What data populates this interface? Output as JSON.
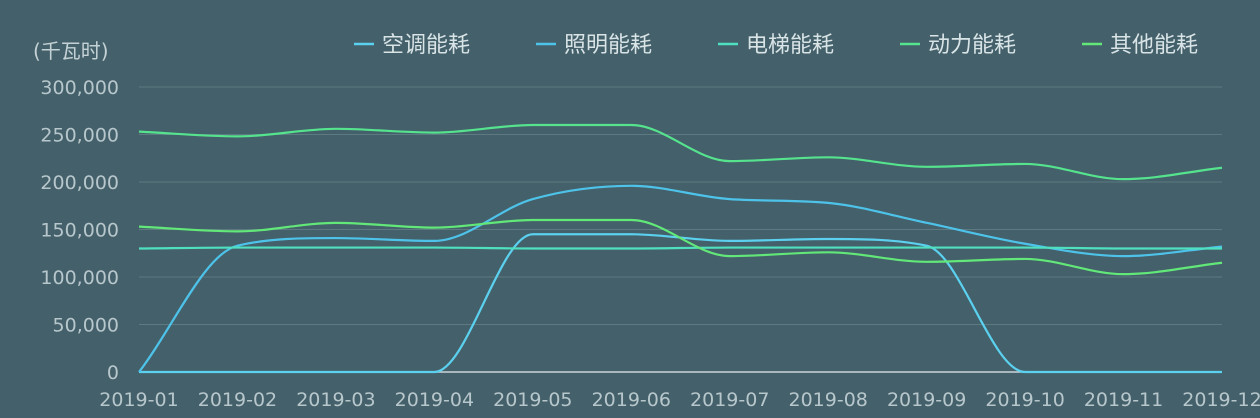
{
  "chart_data": {
    "type": "line",
    "ylabel": "(千瓦时)",
    "ylim": [
      0,
      300000
    ],
    "y_ticks": [
      "0",
      "50,000",
      "100,000",
      "150,000",
      "200,000",
      "250,000",
      "300,000"
    ],
    "y_tick_values": [
      0,
      50000,
      100000,
      150000,
      200000,
      250000,
      300000
    ],
    "categories": [
      "2019-01",
      "2019-02",
      "2019-03",
      "2019-04",
      "2019-05",
      "2019-06",
      "2019-07",
      "2019-08",
      "2019-09",
      "2019-10",
      "2019-11",
      "2019-12"
    ],
    "grid": true,
    "legend_position": "top-right",
    "series": [
      {
        "name": "空调能耗",
        "color": "#5bd1ef",
        "values": [
          0,
          0,
          0,
          0,
          145000,
          145000,
          138000,
          140000,
          133000,
          0,
          0,
          0
        ]
      },
      {
        "name": "照明能耗",
        "color": "#4ec3ea",
        "values": [
          0,
          133000,
          141000,
          138000,
          182000,
          196000,
          182000,
          178000,
          157000,
          135000,
          122000,
          132000
        ]
      },
      {
        "name": "电梯能耗",
        "color": "#4fe0bf",
        "values": [
          130000,
          131000,
          131000,
          131000,
          130000,
          130000,
          131000,
          131000,
          131000,
          131000,
          130000,
          130000
        ]
      },
      {
        "name": "动力能耗",
        "color": "#55e38e",
        "values": [
          253000,
          248000,
          256000,
          252000,
          260000,
          260000,
          222000,
          226000,
          216000,
          219000,
          203000,
          215000
        ]
      },
      {
        "name": "其他能耗",
        "color": "#62e878",
        "values": [
          153000,
          148000,
          157000,
          152000,
          160000,
          160000,
          122000,
          126000,
          116000,
          119000,
          103000,
          115000
        ]
      }
    ]
  }
}
